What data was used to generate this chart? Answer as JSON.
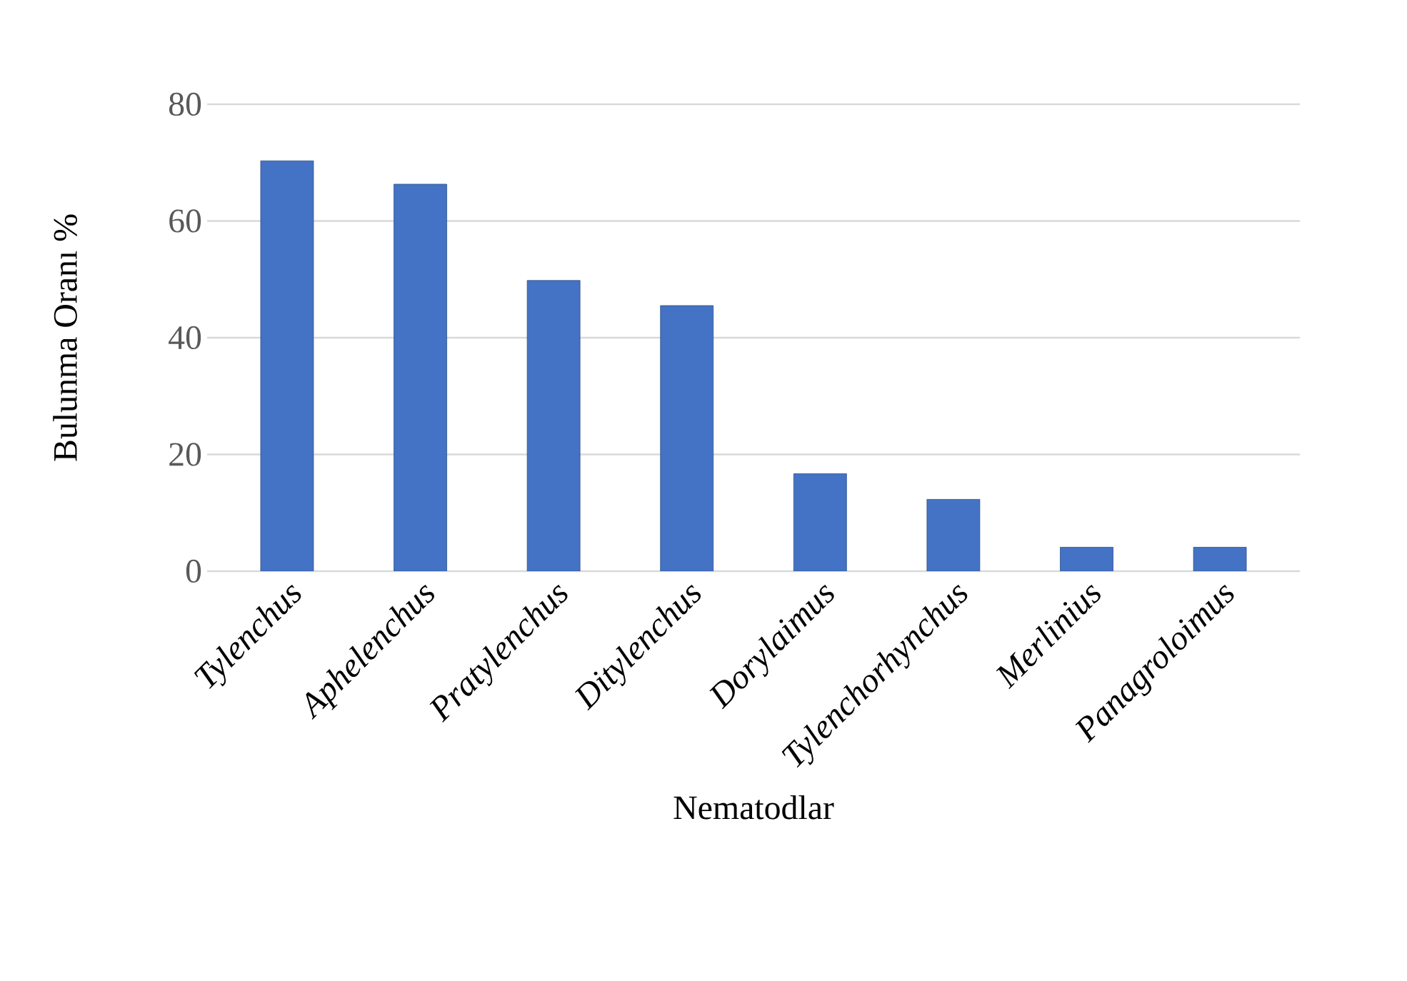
{
  "chart_data": {
    "type": "bar",
    "xlabel": "Nematodlar",
    "ylabel": "Bulunma Oranı %",
    "categories": [
      "*Tylenchus*",
      "*Aphelenchus*",
      "*Pratylenchus*",
      "*Ditylenchus*",
      "*Dorylaimus*",
      "*Tylenchorhynchus*",
      "*Merlinius*",
      "*Panagroloimus*"
    ],
    "values": [
      70.3,
      66.3,
      49.8,
      45.5,
      16.7,
      12.3,
      4.1,
      4.1
    ],
    "color": "#4472c4",
    "ylim": [
      0,
      80
    ],
    "yticks": [
      0,
      20,
      40,
      60,
      80
    ],
    "grid": "y"
  }
}
